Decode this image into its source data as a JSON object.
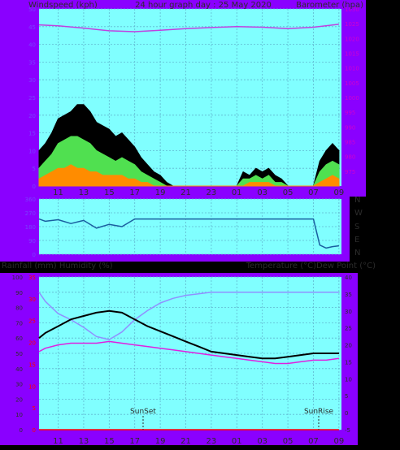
{
  "colors": {
    "purple": "#8a00ff",
    "plot_bg": "#80ffff",
    "grid": "#60b8d0",
    "text_dark": "#2c2c2c",
    "wind_gust": "#000000",
    "wind_avg": "#50e050",
    "wind_low": "#ff8c00",
    "baro": "#c040e0",
    "dir": "#1a5fa0",
    "humidity": "#9090ff",
    "temperature": "#000000",
    "dewpoint": "#e020e0",
    "rainfall": "#ff0000",
    "tick_left": "#7a40ff",
    "tick_right": "#d000d0",
    "rain_tick": "#ff0000"
  },
  "header": {
    "left": "Windspeed (kph)",
    "center": "24 hour graph day : 25 May 2020",
    "right": "Barometer (hpa)"
  },
  "middle_header": {
    "left": "Rainfall (mm)  Humidity (%)",
    "right": "Temperature (°C)Dew Point (°C)"
  },
  "x_ticks": [
    "11",
    "13",
    "15",
    "17",
    "19",
    "21",
    "23",
    "01",
    "03",
    "05",
    "07",
    "09"
  ],
  "compass": [
    "N",
    "W",
    "S",
    "E",
    "N"
  ],
  "markers": {
    "sunset": "SunSet",
    "sunrise": "SunRise"
  },
  "chart_data": [
    {
      "type": "line",
      "id": "wind_baro",
      "title": "24 hour graph day : 25 May 2020",
      "ylabel": "Windspeed (kph)",
      "ylabel_right": "Barometer (hpa)",
      "ylim": [
        0,
        50
      ],
      "ylim_right": [
        970,
        1030
      ],
      "yticks": [
        0,
        5,
        10,
        15,
        20,
        25,
        30,
        35,
        40,
        45,
        50
      ],
      "yticks_right": [
        975,
        980,
        985,
        990,
        995,
        1000,
        1005,
        1010,
        1015,
        1020,
        1025,
        1030
      ],
      "xticks": [
        "11",
        "13",
        "15",
        "17",
        "19",
        "21",
        "23",
        "01",
        "03",
        "05",
        "07",
        "09"
      ],
      "series": [
        {
          "name": "gust",
          "color": "#000000",
          "x": [
            9.5,
            10,
            10.5,
            11,
            11.5,
            12,
            12.5,
            13,
            13.5,
            14,
            14.5,
            15,
            15.5,
            16,
            16.5,
            17,
            17.5,
            18,
            18.5,
            19,
            19.5,
            20,
            21,
            22,
            23,
            24,
            25,
            25.5,
            26,
            26.5,
            27,
            27.5,
            28,
            28.5,
            29,
            30,
            31,
            31.5,
            32,
            32.5,
            33
          ],
          "y": [
            10,
            12,
            15,
            19,
            20,
            21,
            23,
            23,
            21,
            18,
            17,
            16,
            14,
            15,
            13,
            11,
            8,
            6,
            4,
            3,
            1,
            0,
            0,
            0,
            0,
            0,
            0,
            4,
            3,
            5,
            4,
            5,
            3,
            2,
            0,
            0,
            0,
            7,
            10,
            12,
            10
          ]
        },
        {
          "name": "average",
          "color": "#50e050",
          "x": [
            9.5,
            10,
            10.5,
            11,
            11.5,
            12,
            12.5,
            13,
            13.5,
            14,
            14.5,
            15,
            15.5,
            16,
            16.5,
            17,
            17.5,
            18,
            18.5,
            19,
            19.5,
            20,
            21,
            22,
            23,
            24,
            25,
            25.5,
            26,
            26.5,
            27,
            27.5,
            28,
            28.5,
            29,
            30,
            31,
            31.5,
            32,
            32.5,
            33
          ],
          "y": [
            5,
            7,
            9,
            12,
            13,
            14,
            14,
            13,
            12,
            10,
            9,
            8,
            7,
            8,
            7,
            6,
            4,
            3,
            2,
            1,
            0,
            0,
            0,
            0,
            0,
            0,
            0,
            2,
            2,
            3,
            2,
            3,
            1,
            1,
            0,
            0,
            0,
            4,
            6,
            7,
            6
          ]
        },
        {
          "name": "low",
          "color": "#ff8c00",
          "x": [
            9.5,
            10,
            10.5,
            11,
            11.5,
            12,
            12.5,
            13,
            13.5,
            14,
            14.5,
            15,
            15.5,
            16,
            16.5,
            17,
            17.5,
            18,
            18.5,
            19,
            19.5,
            20,
            21,
            22,
            23,
            24,
            25,
            25.5,
            26,
            26.5,
            27,
            27.5,
            28,
            28.5,
            29,
            30,
            31,
            31.5,
            32,
            32.5,
            33
          ],
          "y": [
            2,
            3,
            4,
            5,
            5,
            6,
            5,
            5,
            4,
            4,
            3,
            3,
            3,
            3,
            2,
            2,
            1,
            1,
            0,
            0,
            0,
            0,
            0,
            0,
            0,
            0,
            0,
            0,
            1,
            1,
            1,
            1,
            0,
            0,
            0,
            0,
            0,
            1,
            2,
            3,
            2
          ]
        },
        {
          "name": "barometer",
          "color": "#c040e0",
          "axis": "right",
          "x": [
            9.5,
            11,
            13,
            15,
            17,
            19,
            21,
            23,
            25,
            27,
            29,
            31,
            33
          ],
          "y": [
            1024.6,
            1024.3,
            1023.5,
            1022.6,
            1022.3,
            1022.8,
            1023.3,
            1023.7,
            1024.0,
            1023.8,
            1023.3,
            1023.8,
            1024.8
          ]
        }
      ]
    },
    {
      "type": "line",
      "id": "wind_direction",
      "ylabel": "",
      "ylim": [
        0,
        360
      ],
      "yticks": [
        0,
        90,
        180,
        270,
        360
      ],
      "yticks_right": [
        "N",
        "W",
        "S",
        "E",
        "N"
      ],
      "series": [
        {
          "name": "direction",
          "color": "#1a5fa0",
          "x": [
            9.5,
            10,
            11,
            12,
            13,
            14,
            15,
            16,
            17,
            18,
            19,
            21,
            23,
            25,
            27,
            29,
            30,
            31,
            31.5,
            32,
            32.5,
            33
          ],
          "y": [
            230,
            215,
            225,
            200,
            220,
            170,
            195,
            180,
            230,
            230,
            230,
            230,
            230,
            230,
            230,
            230,
            230,
            230,
            60,
            40,
            50,
            55
          ]
        }
      ]
    },
    {
      "type": "line",
      "id": "temp_humidity",
      "ylabel": "Rainfall (mm)  Humidity (%)",
      "ylabel_right": "Temperature (°C)Dew Point (°C)",
      "ylim": [
        0,
        100
      ],
      "ylim_right": [
        -5,
        40
      ],
      "yticks": [
        0,
        10,
        20,
        30,
        40,
        50,
        60,
        70,
        80,
        90,
        100
      ],
      "yticks_right": [
        -5,
        0,
        5,
        10,
        15,
        20,
        25,
        30,
        35,
        40
      ],
      "rain_ticks": [
        0,
        5,
        10,
        15,
        20,
        25,
        30,
        35
      ],
      "xticks": [
        "11",
        "13",
        "15",
        "17",
        "19",
        "21",
        "23",
        "01",
        "03",
        "05",
        "07",
        "09"
      ],
      "series": [
        {
          "name": "humidity",
          "color": "#9090ff",
          "x": [
            9.5,
            10,
            11,
            12,
            13,
            14,
            15,
            16,
            17,
            18,
            19,
            20,
            21,
            22,
            23,
            25,
            27,
            29,
            31,
            33
          ],
          "y": [
            90,
            84,
            76,
            72,
            67,
            61,
            59,
            64,
            72,
            78,
            83,
            86,
            88,
            89,
            90,
            90,
            90,
            90,
            90,
            90
          ]
        },
        {
          "name": "temperature",
          "color": "#000000",
          "axis": "right",
          "x": [
            9.5,
            10,
            11,
            12,
            13,
            14,
            15,
            16,
            17,
            18,
            19,
            20,
            21,
            22,
            23,
            24,
            25,
            26,
            27,
            28,
            29,
            30,
            31,
            32,
            33
          ],
          "y": [
            22,
            23.5,
            25.5,
            27.5,
            28.5,
            29.5,
            30,
            29.5,
            27.5,
            25.5,
            24,
            22.5,
            21,
            19.5,
            18,
            17.5,
            17,
            16.5,
            16,
            16,
            16.5,
            17,
            17.5,
            17.5,
            17.5
          ]
        },
        {
          "name": "dewpoint",
          "color": "#e020e0",
          "axis": "right",
          "x": [
            9.5,
            10,
            11,
            12,
            13,
            14,
            15,
            16,
            17,
            18,
            19,
            20,
            21,
            22,
            23,
            24,
            25,
            26,
            27,
            28,
            29,
            30,
            31,
            32,
            33
          ],
          "y": [
            18,
            19,
            20,
            20.5,
            20.5,
            20.5,
            21,
            20.5,
            20,
            19.5,
            19,
            18.5,
            18,
            17.5,
            17,
            16.5,
            16,
            15.5,
            15,
            14.5,
            14.5,
            15,
            15.5,
            15.5,
            16
          ]
        },
        {
          "name": "rainfall",
          "color": "#ff0000",
          "x": [
            9.5,
            33
          ],
          "y": [
            0,
            0
          ]
        }
      ]
    }
  ]
}
